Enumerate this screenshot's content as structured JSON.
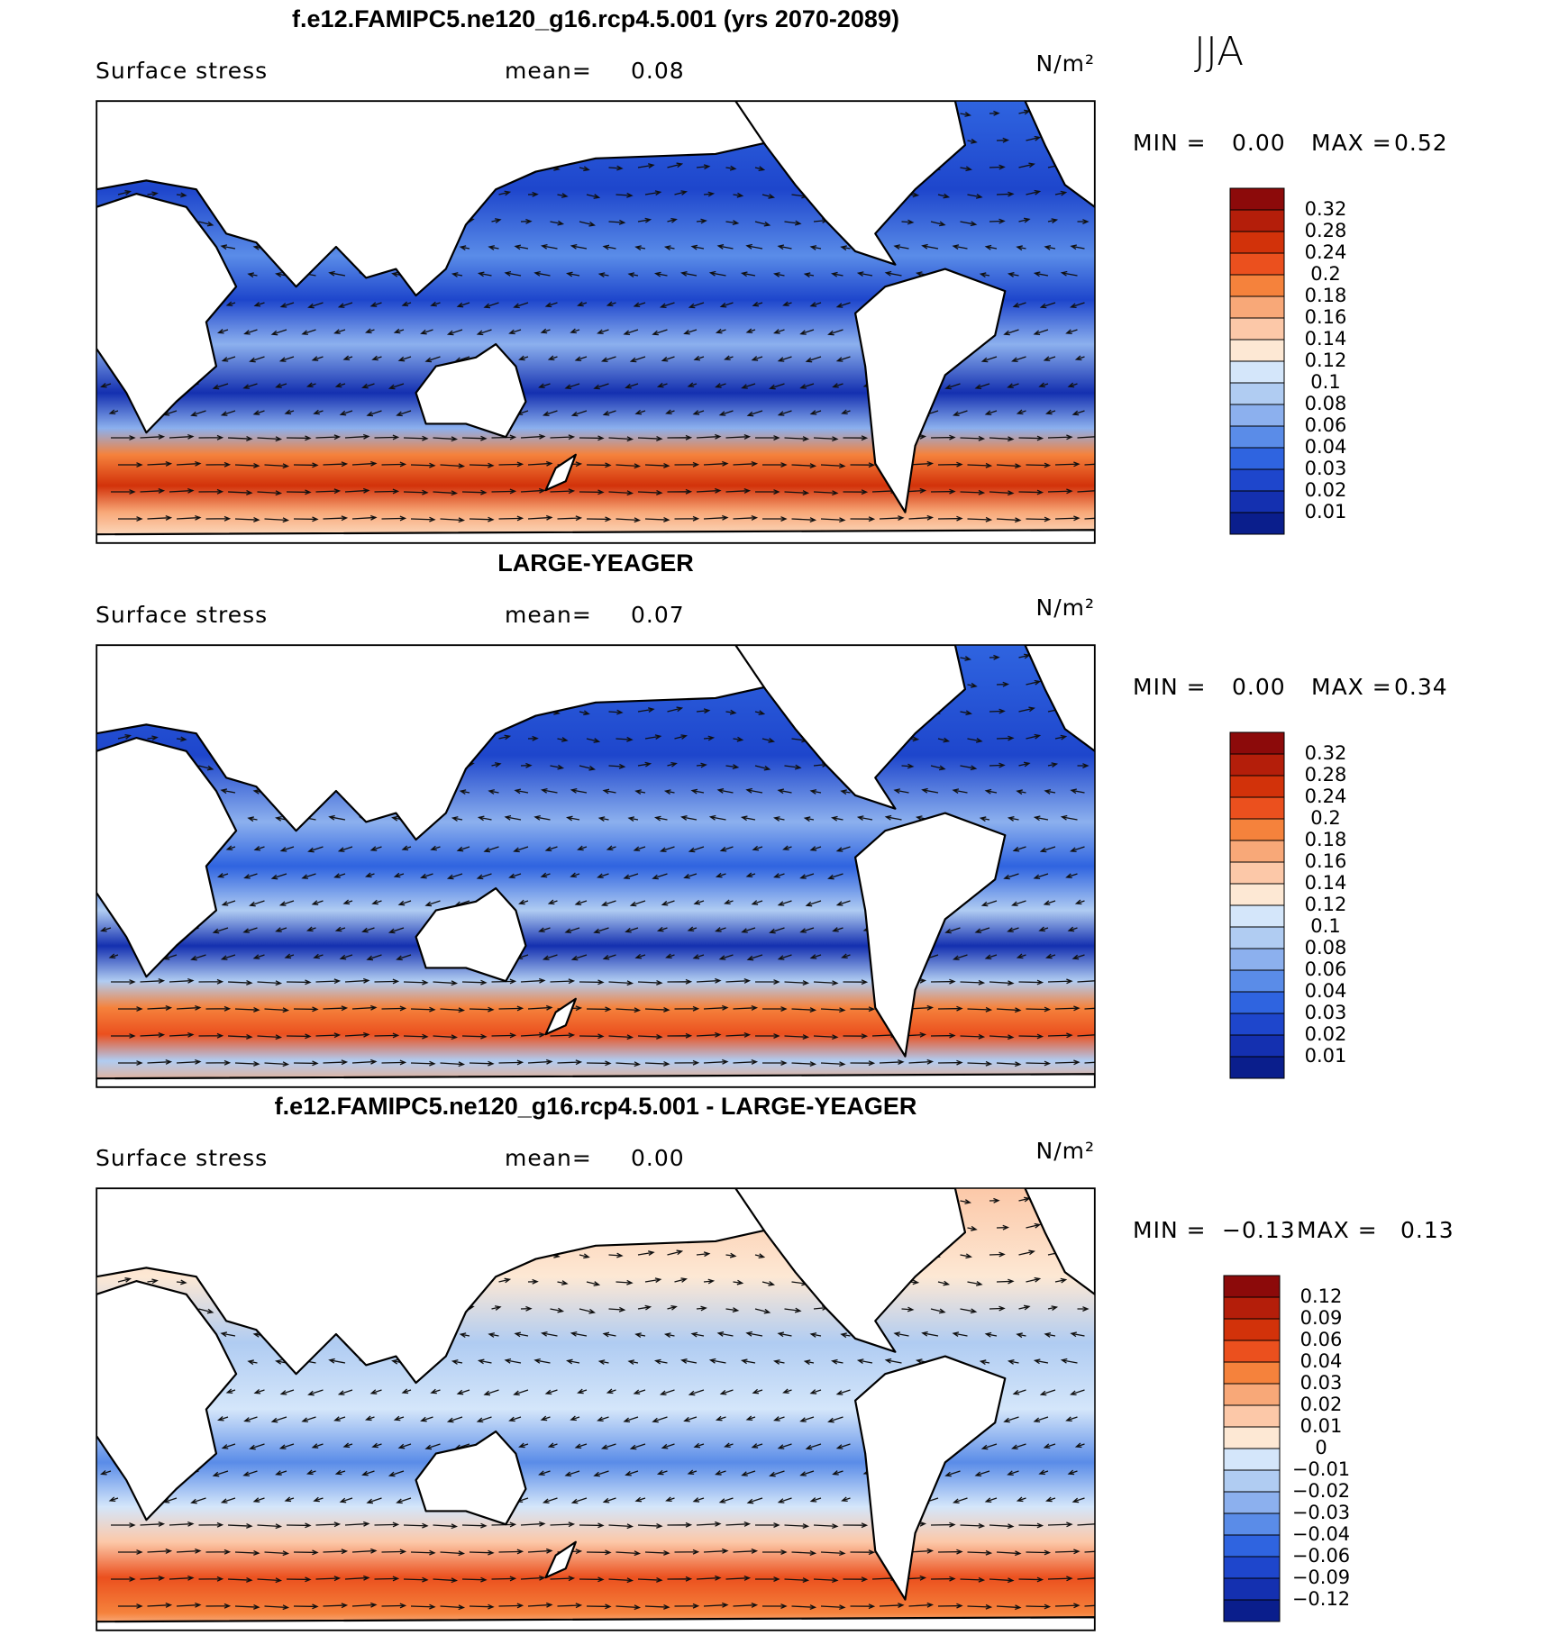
{
  "season": "JJA",
  "panels": [
    {
      "title": "f.e12.FAMIPC5.ne120_g16.rcp4.5.001 (yrs 2070-2089)",
      "variable": "Surface stress",
      "mean_label": "mean=",
      "mean": "0.08",
      "units": "N/m²",
      "min_label": "MIN =",
      "min": "0.00",
      "max_label": "MAX =",
      "max": "0.52",
      "colorbar": {
        "labels": [
          "0.32",
          "0.28",
          "0.24",
          "0.2",
          "0.18",
          "0.16",
          "0.14",
          "0.12",
          "0.1",
          "0.08",
          "0.06",
          "0.04",
          "0.03",
          "0.02",
          "0.01"
        ],
        "colors": [
          "#8c0a0a",
          "#b41e0a",
          "#d2320a",
          "#eb501e",
          "#f5823c",
          "#f8a878",
          "#fcc8a8",
          "#fde8d4",
          "#d4e6fa",
          "#b0ccf2",
          "#8cb0ee",
          "#5a8ce8",
          "#2f64e0",
          "#1e46cc",
          "#1430b0",
          "#0a1e8c"
        ]
      }
    },
    {
      "title": "LARGE-YEAGER",
      "variable": "Surface stress",
      "mean_label": "mean=",
      "mean": "0.07",
      "units": "N/m²",
      "min_label": "MIN =",
      "min": "0.00",
      "max_label": "MAX =",
      "max": "0.34",
      "colorbar": {
        "labels": [
          "0.32",
          "0.28",
          "0.24",
          "0.2",
          "0.18",
          "0.16",
          "0.14",
          "0.12",
          "0.1",
          "0.08",
          "0.06",
          "0.04",
          "0.03",
          "0.02",
          "0.01"
        ],
        "colors": [
          "#8c0a0a",
          "#b41e0a",
          "#d2320a",
          "#eb501e",
          "#f5823c",
          "#f8a878",
          "#fcc8a8",
          "#fde8d4",
          "#d4e6fa",
          "#b0ccf2",
          "#8cb0ee",
          "#5a8ce8",
          "#2f64e0",
          "#1e46cc",
          "#1430b0",
          "#0a1e8c"
        ]
      }
    },
    {
      "title": "f.e12.FAMIPC5.ne120_g16.rcp4.5.001 - LARGE-YEAGER",
      "variable": "Surface stress",
      "mean_label": "mean=",
      "mean": "0.00",
      "units": "N/m²",
      "min_label": "MIN =",
      "min": "−0.13",
      "max_label": "MAX =",
      "max": "0.13",
      "colorbar": {
        "labels": [
          "0.12",
          "0.09",
          "0.06",
          "0.04",
          "0.03",
          "0.02",
          "0.01",
          "0",
          "−0.01",
          "−0.02",
          "−0.03",
          "−0.04",
          "−0.06",
          "−0.09",
          "−0.12"
        ],
        "colors": [
          "#8c0a0a",
          "#b41e0a",
          "#d2320a",
          "#eb501e",
          "#f5823c",
          "#f8a878",
          "#fcc8a8",
          "#fde8d4",
          "#d4e6fa",
          "#b0ccf2",
          "#8cb0ee",
          "#5a8ce8",
          "#2f64e0",
          "#1e46cc",
          "#1430b0",
          "#0a1e8c"
        ]
      }
    }
  ]
}
